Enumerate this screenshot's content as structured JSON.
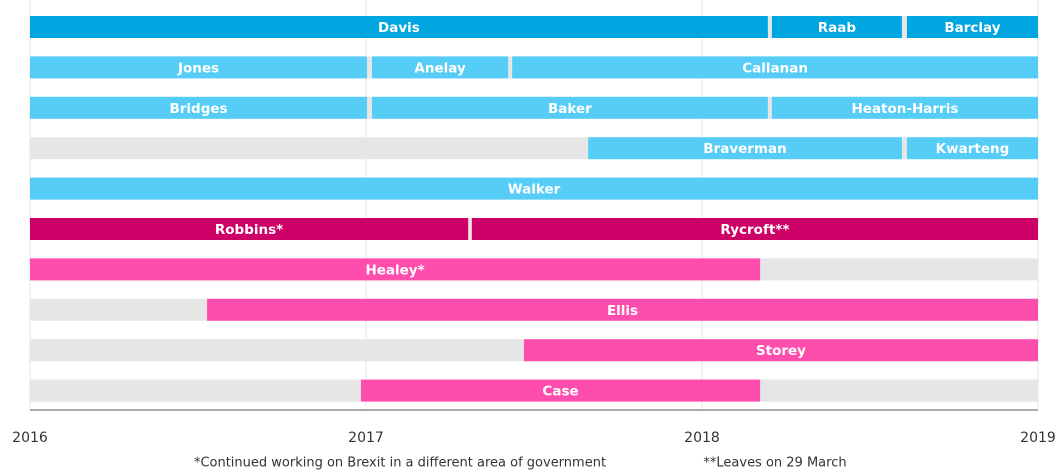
{
  "chart_data": {
    "type": "timeline",
    "xlim": [
      2016,
      2019
    ],
    "xticks": [
      2016,
      2017,
      2018,
      2019
    ],
    "grid": true,
    "rows": [
      [
        {
          "name": "Davis",
          "start": 2016,
          "end": 2018.196,
          "color": "#00a6e0"
        },
        {
          "name": "Raab",
          "start": 2018.208,
          "end": 2018.595,
          "color": "#00a6e0"
        },
        {
          "name": "Barclay",
          "start": 2018.61,
          "end": 2019,
          "color": "#00a6e0"
        }
      ],
      [
        {
          "name": "Jones",
          "start": 2016,
          "end": 2017.003,
          "color": "#55cdf6"
        },
        {
          "name": "Anelay",
          "start": 2017.018,
          "end": 2017.423,
          "color": "#55cdf6"
        },
        {
          "name": "Callanan",
          "start": 2017.435,
          "end": 2019,
          "color": "#55cdf6"
        }
      ],
      [
        {
          "name": "Bridges",
          "start": 2016,
          "end": 2017.003,
          "color": "#55cdf6"
        },
        {
          "name": "Baker",
          "start": 2017.018,
          "end": 2018.196,
          "color": "#55cdf6"
        },
        {
          "name": "Heaton-Harris",
          "start": 2018.208,
          "end": 2019,
          "color": "#55cdf6"
        }
      ],
      [
        {
          "name": "Braverman",
          "start": 2017.661,
          "end": 2018.595,
          "color": "#55cdf6"
        },
        {
          "name": "Kwarteng",
          "start": 2018.61,
          "end": 2019,
          "color": "#55cdf6"
        }
      ],
      [
        {
          "name": "Walker",
          "start": 2016,
          "end": 2019,
          "color": "#55cdf6"
        }
      ],
      [
        {
          "name": "Robbins*",
          "start": 2016,
          "end": 2017.304,
          "color": "#cc0066"
        },
        {
          "name": "Rycroft**",
          "start": 2017.315,
          "end": 2019,
          "color": "#cc0066"
        }
      ],
      [
        {
          "name": "Healey*",
          "start": 2016,
          "end": 2018.173,
          "color": "#ff4dad"
        }
      ],
      [
        {
          "name": "Ellis",
          "start": 2016.527,
          "end": 2019,
          "color": "#ff4dad"
        }
      ],
      [
        {
          "name": "Storey",
          "start": 2017.47,
          "end": 2019,
          "color": "#ff4dad"
        }
      ],
      [
        {
          "name": "Case",
          "start": 2016.985,
          "end": 2018.173,
          "color": "#ff4dad"
        }
      ]
    ],
    "notes": [
      "*Continued working on Brexit in a different area of government",
      "**Leaves on 29 March"
    ]
  }
}
